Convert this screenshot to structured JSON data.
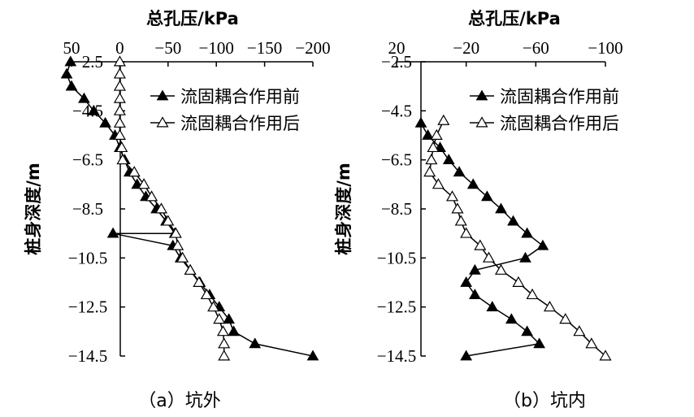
{
  "chart_data": [
    {
      "type": "line",
      "caption": "（a）坑外",
      "xlabel": "总孔压/kPa",
      "ylabel": "桩身深度/m",
      "xlim": [
        50,
        -200
      ],
      "ylim": [
        -2.5,
        -14.5
      ],
      "xticks": [
        50,
        0,
        -50,
        -100,
        -150,
        -200
      ],
      "yticks": [
        -2.5,
        -4.5,
        -6.5,
        -8.5,
        -10.5,
        -12.5,
        -14.5
      ],
      "legend": "top-right",
      "series": [
        {
          "name": "流固耦合作用前",
          "marker": "filled-triangle",
          "points": [
            [
              51,
              -2.5
            ],
            [
              55,
              -3.0
            ],
            [
              50,
              -3.5
            ],
            [
              37,
              -4.0
            ],
            [
              27,
              -4.5
            ],
            [
              15,
              -5.0
            ],
            [
              5,
              -5.5
            ],
            [
              0,
              -6.0
            ],
            [
              -5,
              -6.5
            ],
            [
              -10,
              -7.0
            ],
            [
              -18,
              -7.5
            ],
            [
              -27,
              -8.0
            ],
            [
              -38,
              -8.5
            ],
            [
              -48,
              -9.0
            ],
            [
              -57,
              -9.5
            ],
            [
              7,
              -9.5
            ],
            [
              -55,
              -10.0
            ],
            [
              -63,
              -10.5
            ],
            [
              -73,
              -11.0
            ],
            [
              -83,
              -11.5
            ],
            [
              -93,
              -12.0
            ],
            [
              -103,
              -12.5
            ],
            [
              -113,
              -13.0
            ],
            [
              -118,
              -13.5
            ],
            [
              -140,
              -14.0
            ],
            [
              -200,
              -14.5
            ]
          ]
        },
        {
          "name": "流固耦合作用后",
          "marker": "open-triangle",
          "points": [
            [
              0,
              -2.5
            ],
            [
              0,
              -3.0
            ],
            [
              0,
              -3.5
            ],
            [
              0,
              -4.0
            ],
            [
              0,
              -4.5
            ],
            [
              0,
              -5.0
            ],
            [
              0,
              -5.5
            ],
            [
              -2,
              -6.0
            ],
            [
              -3,
              -6.5
            ],
            [
              -15,
              -7.0
            ],
            [
              -25,
              -7.5
            ],
            [
              -33,
              -8.0
            ],
            [
              -43,
              -8.5
            ],
            [
              -50,
              -9.0
            ],
            [
              -58,
              -9.5
            ],
            [
              -60,
              -10.0
            ],
            [
              -65,
              -10.5
            ],
            [
              -73,
              -11.0
            ],
            [
              -82,
              -11.5
            ],
            [
              -90,
              -12.0
            ],
            [
              -97,
              -12.5
            ],
            [
              -103,
              -13.0
            ],
            [
              -107,
              -13.5
            ],
            [
              -108,
              -14.0
            ],
            [
              -108,
              -14.5
            ]
          ]
        }
      ]
    },
    {
      "type": "line",
      "caption": "（b）坑内",
      "xlabel": "总孔压/kPa",
      "ylabel": "桩身深度/m",
      "xlim": [
        20,
        -100
      ],
      "ylim": [
        -2.5,
        -14.5
      ],
      "xticks": [
        20,
        -20,
        -60,
        -100
      ],
      "yticks": [
        -2.5,
        -4.5,
        -6.5,
        -8.5,
        -10.5,
        -12.5,
        -14.5
      ],
      "legend": "top-right",
      "series": [
        {
          "name": "流固耦合作用前",
          "marker": "filled-triangle",
          "points": [
            [
              6,
              -5.0
            ],
            [
              2,
              -5.5
            ],
            [
              -5,
              -6.0
            ],
            [
              -10,
              -6.5
            ],
            [
              -16,
              -7.0
            ],
            [
              -24,
              -7.5
            ],
            [
              -32,
              -8.0
            ],
            [
              -40,
              -8.5
            ],
            [
              -47,
              -9.0
            ],
            [
              -55,
              -9.5
            ],
            [
              -64,
              -10.0
            ],
            [
              -54,
              -10.5
            ],
            [
              -25,
              -11.0
            ],
            [
              -20,
              -11.5
            ],
            [
              -25,
              -12.0
            ],
            [
              -35,
              -12.5
            ],
            [
              -46,
              -13.0
            ],
            [
              -55,
              -13.5
            ],
            [
              -62,
              -14.0
            ],
            [
              -20,
              -14.5
            ]
          ]
        },
        {
          "name": "流固耦合作用后",
          "marker": "open-triangle",
          "points": [
            [
              -7,
              -4.9
            ],
            [
              -3,
              -5.5
            ],
            [
              -1,
              -6.0
            ],
            [
              0,
              -6.5
            ],
            [
              1,
              -7.0
            ],
            [
              -4,
              -7.5
            ],
            [
              -12,
              -8.0
            ],
            [
              -15,
              -8.5
            ],
            [
              -17,
              -9.0
            ],
            [
              -20,
              -9.5
            ],
            [
              -28,
              -10.0
            ],
            [
              -33,
              -10.5
            ],
            [
              -40,
              -11.0
            ],
            [
              -50,
              -11.5
            ],
            [
              -58,
              -12.0
            ],
            [
              -68,
              -12.5
            ],
            [
              -77,
              -13.0
            ],
            [
              -85,
              -13.5
            ],
            [
              -92,
              -14.0
            ],
            [
              -100,
              -14.5
            ]
          ]
        }
      ]
    }
  ]
}
